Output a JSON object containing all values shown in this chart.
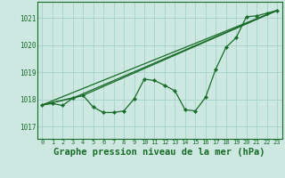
{
  "background_color": "#cce8e0",
  "grid_color": "#aad4cc",
  "line_color": "#1a6b2a",
  "marker_color": "#1a6b2a",
  "xlabel": "Graphe pression niveau de la mer (hPa)",
  "xlabel_fontsize": 7.5,
  "xlim": [
    -0.5,
    23.5
  ],
  "ylim": [
    1016.55,
    1021.6
  ],
  "yticks": [
    1017,
    1018,
    1019,
    1020,
    1021
  ],
  "xticks": [
    0,
    1,
    2,
    3,
    4,
    5,
    6,
    7,
    8,
    9,
    10,
    11,
    12,
    13,
    14,
    15,
    16,
    17,
    18,
    19,
    20,
    21,
    22,
    23
  ],
  "series1": [
    1017.8,
    1017.85,
    1017.78,
    1018.05,
    1018.15,
    1017.72,
    1017.52,
    1017.52,
    1017.58,
    1018.02,
    1018.75,
    1018.7,
    1018.52,
    1018.32,
    1017.62,
    1017.58,
    1018.08,
    1019.12,
    1019.92,
    1020.28,
    1021.05,
    1021.08,
    1021.18,
    1021.28
  ],
  "series2_x": [
    0,
    3,
    23
  ],
  "series2_y": [
    1017.8,
    1018.05,
    1021.28
  ],
  "series3_x": [
    0,
    4,
    23
  ],
  "series3_y": [
    1017.8,
    1018.15,
    1021.28
  ],
  "series4_x": [
    0,
    23
  ],
  "series4_y": [
    1017.8,
    1021.28
  ]
}
